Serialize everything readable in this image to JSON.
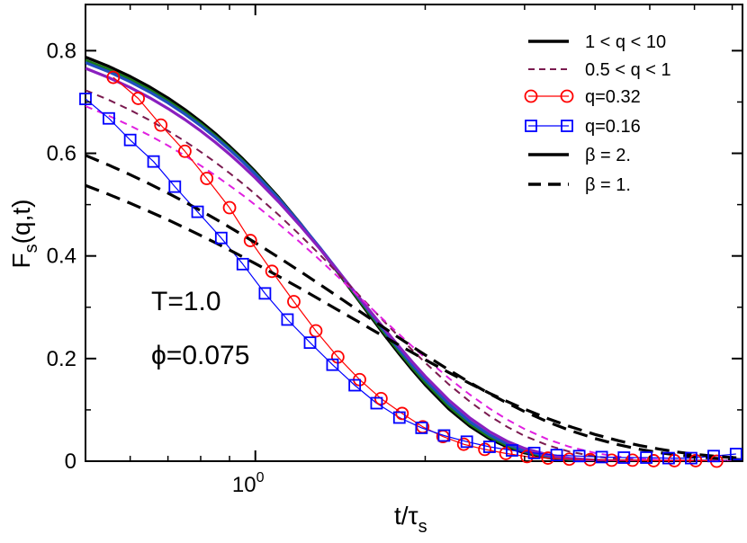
{
  "chart_data": {
    "type": "line",
    "xscale": "log",
    "xlim": [
      0.5,
      7.3
    ],
    "ylim": [
      0,
      0.89
    ],
    "x_ticks": [
      {
        "value": 1.0,
        "base": "10",
        "exp": "0"
      }
    ],
    "y_ticks": [
      {
        "value": 0,
        "label": "0"
      },
      {
        "value": 0.2,
        "label": "0.2"
      },
      {
        "value": 0.4,
        "label": "0.4"
      },
      {
        "value": 0.6,
        "label": "0.6"
      },
      {
        "value": 0.8,
        "label": "0.8"
      }
    ],
    "xlabel": {
      "main": "t/τ",
      "sub": "s"
    },
    "ylabel": {
      "main": "F",
      "sub": "s",
      "tail": "(q,t)"
    },
    "annotations": [
      "T=1.0",
      "ϕ=0.075"
    ],
    "x_samples": [
      0.5,
      0.55,
      0.6,
      0.65,
      0.7,
      0.75,
      0.8,
      0.85,
      0.9,
      0.95,
      1.0,
      1.1,
      1.2,
      1.3,
      1.4,
      1.5,
      1.6,
      1.7,
      1.8,
      1.9,
      2.0,
      2.2,
      2.4,
      2.6,
      2.8,
      3.0,
      3.3,
      3.6,
      4.0,
      4.4,
      4.8,
      5.2,
      5.6,
      6.0,
      6.5,
      7.0,
      7.3
    ],
    "series": [
      {
        "name": "1 < q < 10",
        "style": "solid-thick",
        "color": "#000000",
        "beta": 2.0,
        "amplitude": 0.88,
        "tau": 1.5
      },
      {
        "name": "1 < q < 10",
        "style": "solid-thick",
        "color": "#1a7a1a",
        "beta": 1.97,
        "amplitude": 0.875,
        "tau": 1.51
      },
      {
        "name": "1 < q < 10",
        "style": "solid-thick",
        "color": "#1f4fbf",
        "beta": 1.94,
        "amplitude": 0.872,
        "tau": 1.52
      },
      {
        "name": "1 < q < 10",
        "style": "solid-thick",
        "color": "#8a1fbf",
        "beta": 1.88,
        "amplitude": 0.865,
        "tau": 1.53
      },
      {
        "name": "0.5 < q < 1",
        "style": "dashed",
        "color": "#7a1a4f",
        "beta": 1.6,
        "amplitude": 0.85,
        "tau": 1.56
      },
      {
        "name": "0.5 < q < 1",
        "style": "dashed",
        "color": "#e020e0",
        "beta": 1.48,
        "amplitude": 0.83,
        "tau": 1.58
      },
      {
        "name": "q=0.32",
        "style": "solid-thin-circle",
        "color": "#ff0000",
        "marker": "circle",
        "x": [
          0.56,
          0.62,
          0.68,
          0.75,
          0.82,
          0.9,
          0.98,
          1.07,
          1.17,
          1.28,
          1.4,
          1.53,
          1.67,
          1.82,
          1.98,
          2.15,
          2.34,
          2.55,
          2.78,
          3.03,
          3.3,
          3.6,
          3.92,
          4.28,
          4.66,
          5.08,
          5.53,
          6.03,
          6.57
        ],
        "y": [
          0.748,
          0.707,
          0.655,
          0.604,
          0.551,
          0.494,
          0.43,
          0.37,
          0.311,
          0.254,
          0.203,
          0.159,
          0.122,
          0.093,
          0.067,
          0.048,
          0.033,
          0.023,
          0.015,
          0.009,
          0.006,
          0.004,
          0.003,
          0.002,
          0.002,
          0.001,
          0.001,
          0.001,
          0.0
        ]
      },
      {
        "name": "q=0.16",
        "style": "solid-thin-square",
        "color": "#0000ff",
        "marker": "square",
        "x": [
          0.5,
          0.55,
          0.6,
          0.66,
          0.72,
          0.79,
          0.87,
          0.95,
          1.04,
          1.14,
          1.25,
          1.37,
          1.5,
          1.64,
          1.8,
          1.97,
          2.16,
          2.37,
          2.6,
          2.85,
          3.12,
          3.42,
          3.75,
          4.11,
          4.5,
          4.93,
          5.4,
          5.92,
          6.49,
          7.11
        ],
        "y": [
          0.706,
          0.668,
          0.626,
          0.584,
          0.535,
          0.486,
          0.435,
          0.384,
          0.327,
          0.276,
          0.231,
          0.188,
          0.148,
          0.113,
          0.085,
          0.065,
          0.05,
          0.038,
          0.028,
          0.021,
          0.016,
          0.012,
          0.01,
          0.008,
          0.007,
          0.007,
          0.006,
          0.006,
          0.01,
          0.014
        ]
      },
      {
        "name": "β = 2.",
        "style": "solid-legend-only",
        "color": "#000000"
      },
      {
        "name": "β = 1.",
        "style": "dashed-thick",
        "color": "#000000",
        "beta": 1.0,
        "amplitude": 0.75,
        "tau": 1.5
      },
      {
        "name": "β = 1.",
        "style": "dashed-thick",
        "color": "#000000",
        "beta": 1.1,
        "amplitude": 0.8,
        "tau": 1.52
      }
    ],
    "legend": {
      "placement": "top-right",
      "entries": [
        {
          "label": "1 < q < 10",
          "style": "solid",
          "color": "#000000"
        },
        {
          "label": "0.5 < q < 1",
          "style": "dashed-thin",
          "color": "#7a1a4f"
        },
        {
          "label": "q=0.32",
          "style": "circle",
          "color": "#ff0000"
        },
        {
          "label": "q=0.16",
          "style": "square",
          "color": "#0000ff"
        },
        {
          "label": "β = 2.",
          "style": "solid",
          "color": "#000000"
        },
        {
          "label": "β = 1.",
          "style": "dashed",
          "color": "#000000"
        }
      ]
    }
  }
}
